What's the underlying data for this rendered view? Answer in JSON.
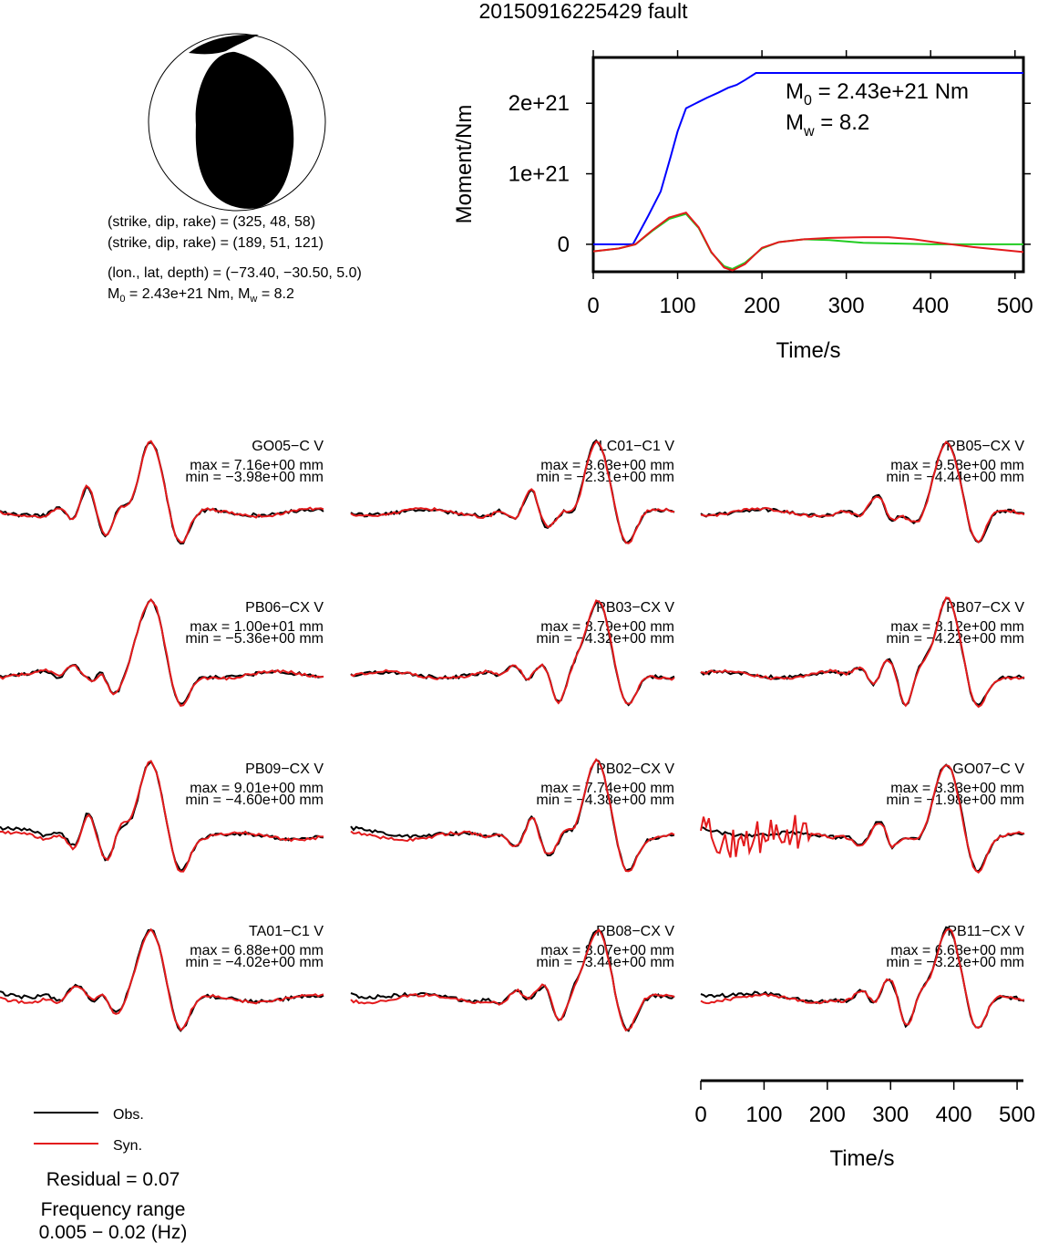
{
  "title": "20150916225429 fault",
  "mechanism": {
    "plane1": "(strike, dip, rake) = (325, 48, 58)",
    "plane2": "(strike, dip, rake) = (189, 51, 121)",
    "location": "(lon., lat, depth) = (−73.40, −30.50, 5.0)",
    "m0_line_a": "M",
    "m0_line_sub": "0",
    "m0_line_b": " = 2.43e+21 Nm, M",
    "m0_line_sub2": "w",
    "m0_line_c": " = 8.2"
  },
  "moment_panel": {
    "m0_label": "M",
    "m0_sub": "0",
    "m0_value": " = 2.43e+21 Nm",
    "mw_label": "M",
    "mw_sub": "w",
    "mw_value": " = 8.2"
  },
  "legend": {
    "obs": "Obs.",
    "syn": "Syn.",
    "obs_color": "#000000",
    "syn_color": "#e31a1c"
  },
  "residual": "Residual = 0.07",
  "freq_label": "Frequency range",
  "freq_value": "0.005 − 0.02 (Hz)",
  "chart_data": [
    {
      "type": "line",
      "xlabel": "Time/s",
      "ylabel": "Moment/Nm",
      "xlim": [
        0,
        510
      ],
      "ylim": [
        -3.9e+20,
        2.65e+21
      ],
      "xticks": [
        0,
        100,
        200,
        300,
        400,
        500
      ],
      "yticks": [
        0,
        1e+21,
        2e+21
      ],
      "ytick_labels": [
        "0",
        "1e+21",
        "2e+21"
      ],
      "series": [
        {
          "color": "#0000ff",
          "x": [
            0,
            47,
            65,
            80,
            92,
            100,
            110,
            125,
            135,
            148,
            160,
            170,
            180,
            193,
            510
          ],
          "y": [
            0,
            0,
            4e+20,
            7.5e+20,
            1.25e+21,
            1.6e+21,
            1.93e+21,
            2.02e+21,
            2.08e+21,
            2.15e+21,
            2.22e+21,
            2.26e+21,
            2.33e+21,
            2.43e+21,
            2.43e+21
          ]
        },
        {
          "color": "#22cc22",
          "x": [
            0,
            30,
            50,
            70,
            90,
            110,
            125,
            140,
            155,
            165,
            180,
            200,
            220,
            250,
            280,
            320,
            400,
            510
          ],
          "y": [
            -1e+20,
            -6e+19,
            0,
            1.9e+20,
            3.6e+20,
            4.3e+20,
            2.3e+20,
            -1.2e+20,
            -3.1e+20,
            -3.5e+20,
            -2.6e+20,
            -6e+19,
            3e+19,
            7e+19,
            6e+19,
            2e+19,
            0,
            0
          ]
        },
        {
          "color": "#e31a1c",
          "x": [
            0,
            30,
            50,
            70,
            90,
            110,
            125,
            140,
            155,
            165,
            180,
            200,
            220,
            250,
            280,
            320,
            350,
            380,
            410,
            450,
            510
          ],
          "y": [
            -1e+20,
            -6e+19,
            0,
            2e+20,
            3.8e+20,
            4.5e+20,
            2.4e+20,
            -1.1e+20,
            -3.3e+20,
            -3.7e+20,
            -2.8e+20,
            -5e+19,
            3e+19,
            7e+19,
            9e+19,
            1e+20,
            1e+20,
            7e+19,
            2e+19,
            -4e+19,
            -1.1e+20
          ]
        }
      ]
    },
    {
      "type": "line",
      "xlabel": "Time/s",
      "xlim": [
        0,
        510
      ],
      "xticks": [
        0,
        100,
        200,
        300,
        400,
        500
      ],
      "stations": [
        {
          "name": "GO05−C V",
          "max": "max = 7.16e+00 mm",
          "min": "min = −3.98e+00 mm",
          "vmax": 7.16,
          "vmin": -3.98
        },
        {
          "name": "LC01−C1 V",
          "max": "max = 3.63e+00 mm",
          "min": "min = −2.31e+00 mm",
          "vmax": 3.63,
          "vmin": -2.31
        },
        {
          "name": "PB05−CX V",
          "max": "max = 9.58e+00 mm",
          "min": "min = −4.44e+00 mm",
          "vmax": 9.58,
          "vmin": -4.44
        },
        {
          "name": "PB06−CX V",
          "max": "max = 1.00e+01 mm",
          "min": "min = −5.36e+00 mm",
          "vmax": 10.0,
          "vmin": -5.36
        },
        {
          "name": "PB03−CX V",
          "max": "max = 8.79e+00 mm",
          "min": "min = −4.32e+00 mm",
          "vmax": 8.79,
          "vmin": -4.32
        },
        {
          "name": "PB07−CX V",
          "max": "max = 8.12e+00 mm",
          "min": "min = −4.22e+00 mm",
          "vmax": 8.12,
          "vmin": -4.22
        },
        {
          "name": "PB09−CX V",
          "max": "max = 9.01e+00 mm",
          "min": "min = −4.60e+00 mm",
          "vmax": 9.01,
          "vmin": -4.6
        },
        {
          "name": "PB02−CX V",
          "max": "max = 7.74e+00 mm",
          "min": "min = −4.38e+00 mm",
          "vmax": 7.74,
          "vmin": -4.38
        },
        {
          "name": "GO07−C V",
          "max": "max = 3.33e+00 mm",
          "min": "min = −1.98e+00 mm",
          "vmax": 3.33,
          "vmin": -1.98
        },
        {
          "name": "TA01−C1 V",
          "max": "max = 6.88e+00 mm",
          "min": "min = −4.02e+00 mm",
          "vmax": 6.88,
          "vmin": -4.02
        },
        {
          "name": "PB08−CX V",
          "max": "max = 8.07e+00 mm",
          "min": "min = −3.44e+00 mm",
          "vmax": 8.07,
          "vmin": -3.44
        },
        {
          "name": "PB11−CX V",
          "max": "max = 6.68e+00 mm",
          "min": "min = −3.22e+00 mm",
          "vmax": 6.68,
          "vmin": -3.22
        }
      ]
    }
  ]
}
